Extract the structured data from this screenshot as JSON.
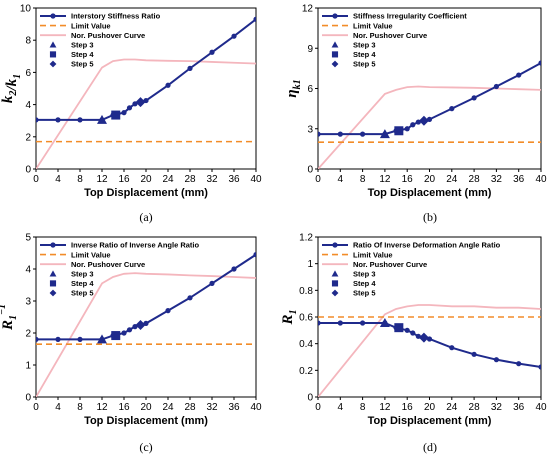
{
  "chart_data": [
    {
      "type": "line",
      "caption": "(a)",
      "ylabel": {
        "main": "k",
        "sub": "2",
        "slash": "/",
        "main2": "k",
        "sub2": "1"
      },
      "xlabel": "Top Displacement (mm)",
      "xlim": [
        0,
        40
      ],
      "ylim": [
        0,
        10
      ],
      "xticks": [
        0,
        4,
        8,
        12,
        16,
        20,
        24,
        28,
        32,
        36,
        40
      ],
      "yticks": [
        0,
        2,
        4,
        6,
        8,
        10
      ],
      "limit_value": 1.7,
      "series": [
        {
          "name": "Interstory Stiffness Ratio",
          "color": "#1f2a8c",
          "x": [
            0,
            4,
            8,
            12,
            14,
            16,
            17,
            18,
            19,
            20,
            24,
            28,
            32,
            36,
            40
          ],
          "y": [
            3.05,
            3.05,
            3.05,
            3.05,
            3.35,
            3.5,
            3.8,
            4.05,
            4.15,
            4.25,
            5.2,
            6.25,
            7.25,
            8.25,
            9.3
          ]
        },
        {
          "name": "Limit Value",
          "color": "#f28c28",
          "y": 1.7
        },
        {
          "name": "Nor. Pushover Curve",
          "color": "#f4b6bd",
          "x": [
            0,
            12,
            14,
            16,
            18,
            20,
            24,
            28,
            32,
            36,
            40
          ],
          "y": [
            0,
            6.3,
            6.7,
            6.8,
            6.8,
            6.75,
            6.72,
            6.7,
            6.65,
            6.6,
            6.55
          ]
        },
        {
          "name": "Step 3",
          "marker": "triangle",
          "x": 12,
          "y": 3.05
        },
        {
          "name": "Step 4",
          "marker": "square",
          "x": 14.5,
          "y": 3.35
        },
        {
          "name": "Step 5",
          "marker": "diamond",
          "x": 19,
          "y": 4.15
        }
      ]
    },
    {
      "type": "line",
      "caption": "(b)",
      "ylabel": {
        "main": "η",
        "sub": "k1"
      },
      "xlabel": "Top Displacement (mm)",
      "xlim": [
        0,
        40
      ],
      "ylim": [
        0,
        12
      ],
      "xticks": [
        0,
        4,
        8,
        12,
        16,
        20,
        24,
        28,
        32,
        36,
        40
      ],
      "yticks": [
        0,
        3,
        6,
        9,
        12
      ],
      "limit_value": 2.0,
      "series": [
        {
          "name": "Stiffness Irregularity Coefficient",
          "color": "#1f2a8c",
          "x": [
            0,
            4,
            8,
            12,
            14,
            16,
            17,
            18,
            19,
            20,
            24,
            28,
            32,
            36,
            40
          ],
          "y": [
            2.6,
            2.6,
            2.6,
            2.6,
            2.85,
            3.0,
            3.3,
            3.5,
            3.6,
            3.7,
            4.5,
            5.3,
            6.15,
            7.0,
            7.9
          ]
        },
        {
          "name": "Limit Value",
          "color": "#f28c28",
          "y": 2.0
        },
        {
          "name": "Nor. Pushover Curve",
          "color": "#f4b6bd",
          "x": [
            0,
            12,
            14,
            16,
            18,
            20,
            24,
            28,
            32,
            36,
            40
          ],
          "y": [
            0,
            5.6,
            5.9,
            6.1,
            6.15,
            6.1,
            6.08,
            6.05,
            6.0,
            5.95,
            5.9
          ]
        },
        {
          "name": "Step 3",
          "marker": "triangle",
          "x": 12,
          "y": 2.6
        },
        {
          "name": "Step 4",
          "marker": "square",
          "x": 14.5,
          "y": 2.85
        },
        {
          "name": "Step 5",
          "marker": "diamond",
          "x": 19,
          "y": 3.6
        }
      ]
    },
    {
      "type": "line",
      "caption": "(c)",
      "ylabel": {
        "main": "R",
        "sub": "1",
        "sup": "−1"
      },
      "xlabel": "Top Displacement (mm)",
      "xlim": [
        0,
        40
      ],
      "ylim": [
        0,
        5
      ],
      "xticks": [
        0,
        4,
        8,
        12,
        16,
        20,
        24,
        28,
        32,
        36,
        40
      ],
      "yticks": [
        0,
        1,
        2,
        3,
        4,
        5
      ],
      "limit_value": 1.65,
      "series": [
        {
          "name": "Inverse Ratio of Inverse Angle Ratio",
          "color": "#1f2a8c",
          "x": [
            0,
            4,
            8,
            12,
            14,
            16,
            17,
            18,
            19,
            20,
            24,
            28,
            32,
            36,
            40
          ],
          "y": [
            1.8,
            1.8,
            1.8,
            1.8,
            1.92,
            2.0,
            2.1,
            2.2,
            2.25,
            2.3,
            2.7,
            3.1,
            3.55,
            4.0,
            4.45
          ]
        },
        {
          "name": "Limit Value",
          "color": "#f28c28",
          "y": 1.65
        },
        {
          "name": "Nor. Pushover Curve",
          "color": "#f4b6bd",
          "x": [
            0,
            12,
            14,
            16,
            18,
            20,
            24,
            28,
            32,
            36,
            40
          ],
          "y": [
            0,
            3.55,
            3.75,
            3.85,
            3.87,
            3.85,
            3.83,
            3.8,
            3.78,
            3.75,
            3.72
          ]
        },
        {
          "name": "Step 3",
          "marker": "triangle",
          "x": 12,
          "y": 1.8
        },
        {
          "name": "Step 4",
          "marker": "square",
          "x": 14.5,
          "y": 1.92
        },
        {
          "name": "Step 5",
          "marker": "diamond",
          "x": 19,
          "y": 2.25
        }
      ]
    },
    {
      "type": "line",
      "caption": "(d)",
      "ylabel": {
        "main": "R",
        "sub": "1"
      },
      "xlabel": "Top Displacement (mm)",
      "xlim": [
        0,
        40
      ],
      "ylim": [
        0,
        1.2
      ],
      "xticks": [
        0,
        4,
        8,
        12,
        16,
        20,
        24,
        28,
        32,
        36,
        40
      ],
      "yticks": [
        0,
        0.2,
        0.4,
        0.6,
        0.8,
        1.0,
        1.2
      ],
      "limit_value": 0.6,
      "series": [
        {
          "name": "Ratio Of Inverse Deformation Angle Ratio",
          "color": "#1f2a8c",
          "x": [
            0,
            4,
            8,
            12,
            14,
            16,
            17,
            18,
            19,
            20,
            24,
            28,
            32,
            36,
            40
          ],
          "y": [
            0.555,
            0.555,
            0.555,
            0.555,
            0.52,
            0.5,
            0.48,
            0.455,
            0.445,
            0.435,
            0.37,
            0.32,
            0.28,
            0.25,
            0.225
          ]
        },
        {
          "name": "Limit Value",
          "color": "#f28c28",
          "y": 0.6
        },
        {
          "name": "Nor. Pushover Curve",
          "color": "#f4b6bd",
          "x": [
            0,
            12,
            14,
            16,
            18,
            20,
            24,
            28,
            32,
            36,
            40
          ],
          "y": [
            0,
            0.62,
            0.66,
            0.68,
            0.69,
            0.69,
            0.68,
            0.68,
            0.67,
            0.67,
            0.66
          ]
        },
        {
          "name": "Step 3",
          "marker": "triangle",
          "x": 12,
          "y": 0.555
        },
        {
          "name": "Step 4",
          "marker": "square",
          "x": 14.5,
          "y": 0.52
        },
        {
          "name": "Step 5",
          "marker": "diamond",
          "x": 19,
          "y": 0.445
        }
      ]
    }
  ]
}
